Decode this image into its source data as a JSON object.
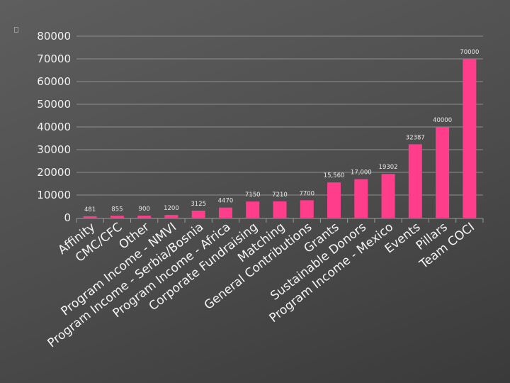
{
  "chart_data": {
    "type": "bar",
    "title": "",
    "xlabel": "",
    "ylabel": "",
    "ylim": [
      0,
      80000
    ],
    "yticks": [
      0,
      10000,
      20000,
      30000,
      40000,
      50000,
      60000,
      70000,
      80000
    ],
    "grid": true,
    "legend": "none",
    "bar_color": "#ff3d8b",
    "categories": [
      "Affinity",
      "CMC/CFC",
      "Other",
      "Program Income - NMVI",
      "Program Income - Serbia/Bosnia",
      "Program Income - Africa",
      "Corporate Fundraising",
      "Matching",
      "General Contributions",
      "Grants",
      "Sustainable Donors",
      "Program Income - Mexico",
      "Events",
      "Pillars",
      "Team COCI"
    ],
    "values": [
      481,
      855,
      900,
      1200,
      3125,
      4470,
      7150,
      7210,
      7700,
      15560,
      17000,
      19302,
      32387,
      40000,
      70000
    ],
    "data_labels": [
      "481",
      "855",
      "900",
      "1200",
      "3125",
      "4470",
      "7150",
      "7210",
      "7700",
      "15,560",
      "17,000",
      "19302",
      "32387",
      "40000",
      "70000"
    ]
  }
}
